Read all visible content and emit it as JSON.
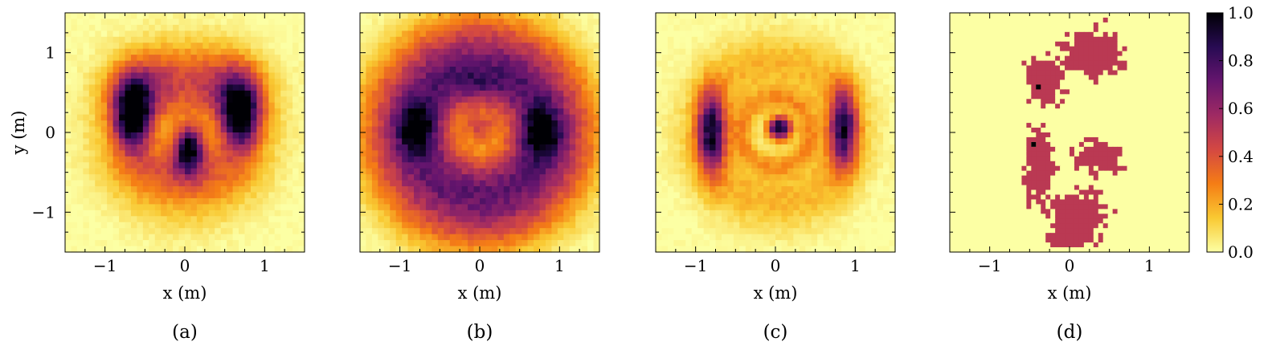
{
  "chart_data": [
    {
      "type": "heatmap",
      "panel_label": "(a)",
      "xlabel": "x (m)",
      "ylabel": "y (m)",
      "xlim": [
        -1.5,
        1.5
      ],
      "ylim": [
        -1.5,
        1.5
      ],
      "xticks": [
        -1,
        0,
        1
      ],
      "yticks": [
        -1,
        0,
        1
      ],
      "xtick_labels": [
        "−1",
        "0",
        "1"
      ],
      "ytick_labels": [
        "−1",
        "0",
        "1"
      ],
      "grid_resolution": 40,
      "colormap": "inferno_r",
      "value_range": [
        0,
        1
      ],
      "features": [
        {
          "shape": "blob",
          "x": -0.65,
          "y": 0.22,
          "sx": 0.16,
          "sy": 0.3,
          "peak": 0.95
        },
        {
          "shape": "blob",
          "x": 0.7,
          "y": 0.22,
          "sx": 0.16,
          "sy": 0.3,
          "peak": 0.9
        },
        {
          "shape": "blob",
          "x": 0.05,
          "y": -0.2,
          "sx": 0.12,
          "sy": 0.2,
          "peak": 0.85
        },
        {
          "shape": "blob",
          "x": -0.45,
          "y": 0.55,
          "sx": 0.35,
          "sy": 0.3,
          "peak": 0.35
        },
        {
          "shape": "blob",
          "x": 0.5,
          "y": 0.55,
          "sx": 0.35,
          "sy": 0.3,
          "peak": 0.35
        },
        {
          "shape": "blob",
          "x": 0.0,
          "y": -0.45,
          "sx": 0.45,
          "sy": 0.25,
          "peak": 0.3
        },
        {
          "shape": "ring",
          "x": 0.0,
          "y": 0.0,
          "r": 0.75,
          "w": 0.35,
          "peak": 0.18
        }
      ]
    },
    {
      "type": "heatmap",
      "panel_label": "(b)",
      "xlabel": "x (m)",
      "ylabel": "",
      "xlim": [
        -1.5,
        1.5
      ],
      "ylim": [
        -1.5,
        1.5
      ],
      "xticks": [
        -1,
        0,
        1
      ],
      "yticks": [
        -1,
        0,
        1
      ],
      "xtick_labels": [
        "−1",
        "0",
        "1"
      ],
      "ytick_labels": [],
      "grid_resolution": 40,
      "colormap": "inferno_r",
      "value_range": [
        0,
        1
      ],
      "features": [
        {
          "shape": "ring",
          "x": 0.0,
          "y": 0.0,
          "r": 0.7,
          "w": 0.32,
          "peak": 0.62
        },
        {
          "shape": "blob",
          "x": -0.8,
          "y": 0.05,
          "sx": 0.16,
          "sy": 0.22,
          "peak": 0.45
        },
        {
          "shape": "blob",
          "x": 0.78,
          "y": 0.0,
          "sx": 0.16,
          "sy": 0.22,
          "peak": 0.45
        },
        {
          "shape": "blob",
          "x": 0.0,
          "y": 0.6,
          "sx": 0.3,
          "sy": 0.15,
          "peak": 0.15
        },
        {
          "shape": "blob",
          "x": 0.0,
          "y": 0.05,
          "sx": 0.14,
          "sy": 0.14,
          "peak": 0.35
        },
        {
          "shape": "ring",
          "x": 0.0,
          "y": 0.0,
          "r": 1.2,
          "w": 0.32,
          "peak": 0.3
        }
      ]
    },
    {
      "type": "heatmap",
      "panel_label": "(c)",
      "xlabel": "x (m)",
      "ylabel": "",
      "xlim": [
        -1.5,
        1.5
      ],
      "ylim": [
        -1.5,
        1.5
      ],
      "xticks": [
        -1,
        0,
        1
      ],
      "yticks": [
        -1,
        0,
        1
      ],
      "xtick_labels": [
        "−1",
        "0",
        "1"
      ],
      "ytick_labels": [],
      "grid_resolution": 40,
      "colormap": "inferno_r",
      "value_range": [
        0,
        1
      ],
      "features": [
        {
          "shape": "blob",
          "x": -0.8,
          "y": 0.0,
          "sx": 0.12,
          "sy": 0.35,
          "peak": 0.8
        },
        {
          "shape": "blob",
          "x": 0.85,
          "y": 0.05,
          "sx": 0.12,
          "sy": 0.35,
          "peak": 0.75
        },
        {
          "shape": "blob",
          "x": 0.05,
          "y": 0.05,
          "sx": 0.1,
          "sy": 0.1,
          "peak": 1.0
        },
        {
          "shape": "ring",
          "x": 0.0,
          "y": 0.0,
          "r": 0.42,
          "w": 0.1,
          "peak": 0.2
        },
        {
          "shape": "ring",
          "x": 0.0,
          "y": 0.0,
          "r": 0.85,
          "w": 0.3,
          "peak": 0.18
        }
      ]
    },
    {
      "type": "heatmap",
      "panel_label": "(d)",
      "xlabel": "x (m)",
      "ylabel": "",
      "xlim": [
        -1.5,
        1.5
      ],
      "ylim": [
        -1.5,
        1.5
      ],
      "xticks": [
        -1,
        0,
        1
      ],
      "yticks": [
        -1,
        0,
        1
      ],
      "xtick_labels": [
        "−1",
        "0",
        "1"
      ],
      "ytick_labels": [],
      "grid_resolution": 50,
      "colormap": "inferno_r",
      "value_range": [
        0,
        1
      ],
      "binary": true,
      "foreground_value": 0.5,
      "background_value": 0.0,
      "regions": [
        {
          "shape": "blob",
          "x": 0.3,
          "y": 1.0,
          "sx": 0.3,
          "sy": 0.28
        },
        {
          "shape": "blob",
          "x": -0.32,
          "y": 0.65,
          "sx": 0.2,
          "sy": 0.25
        },
        {
          "shape": "blob",
          "x": -0.38,
          "y": -0.45,
          "sx": 0.15,
          "sy": 0.4
        },
        {
          "shape": "blob",
          "x": 0.38,
          "y": -0.3,
          "sx": 0.25,
          "sy": 0.18
        },
        {
          "shape": "blob",
          "x": 0.05,
          "y": -1.3,
          "sx": 0.3,
          "sy": 0.12
        },
        {
          "shape": "blob",
          "x": 0.1,
          "y": -1.0,
          "sx": 0.3,
          "sy": 0.22
        }
      ],
      "peak_points": [
        {
          "x": -0.38,
          "y": 0.58,
          "value": 1.0
        },
        {
          "x": -0.45,
          "y": -0.15,
          "value": 1.0
        }
      ]
    }
  ],
  "colorbar": {
    "range": [
      0,
      1
    ],
    "ticks": [
      "0.0",
      "0.2",
      "0.4",
      "0.6",
      "0.8",
      "1.0"
    ],
    "colormap": "inferno_r",
    "stops": [
      "#fcffa4",
      "#f9c932",
      "#f57d15",
      "#d44842",
      "#9f2a63",
      "#65156e",
      "#280b53",
      "#000004"
    ]
  }
}
